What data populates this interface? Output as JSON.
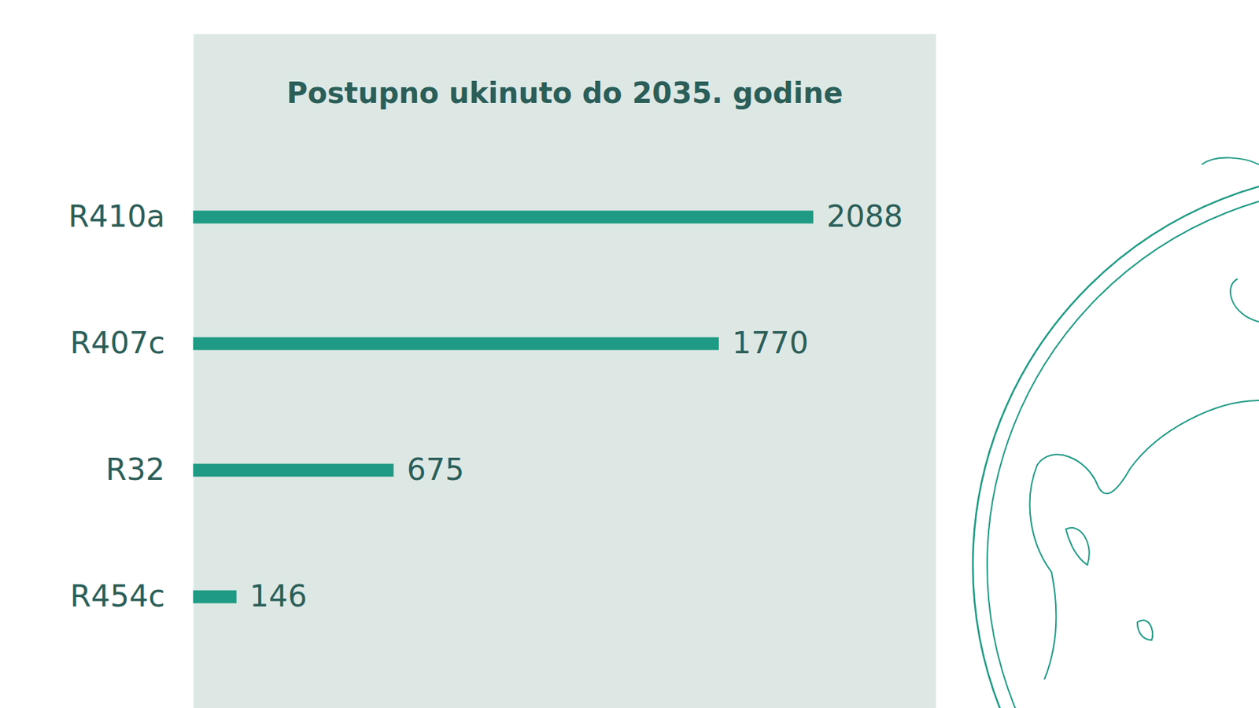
{
  "chart_data": {
    "type": "bar",
    "title": "Postupno ukinuto do 2035. godine",
    "categories": [
      "R410a",
      "R407c",
      "R32",
      "R454c"
    ],
    "values": [
      2088,
      1770,
      675,
      146
    ],
    "color": "#1f9a84",
    "orientation": "horizontal",
    "xlim": [
      0,
      2500
    ],
    "xticks": [
      0,
      500,
      1000,
      1500,
      2000,
      2500
    ],
    "grid": true,
    "data_labels": true,
    "tick_labels": "y"
  }
}
